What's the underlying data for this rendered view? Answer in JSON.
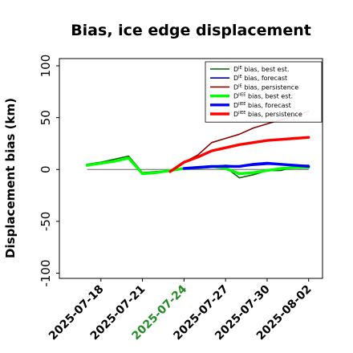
{
  "chart_data": {
    "type": "line",
    "title": "Bias, ice edge displacement",
    "xlabel": "",
    "ylabel": "Displacement bias (km)",
    "ylim": [
      -105,
      107
    ],
    "xlim": [
      "2025-07-15",
      "2025-08-03"
    ],
    "grid": false,
    "legend_position": "top-right",
    "x_ticks": [
      {
        "label": "2025-07-18",
        "color": "#000000"
      },
      {
        "label": "2025-07-21",
        "color": "#000000"
      },
      {
        "label": "2025-07-24",
        "color": "#228b22"
      },
      {
        "label": "2025-07-27",
        "color": "#000000"
      },
      {
        "label": "2025-07-30",
        "color": "#000000"
      },
      {
        "label": "2025-08-02",
        "color": "#000000"
      }
    ],
    "y_ticks": [
      {
        "value": 100,
        "label": "100"
      },
      {
        "value": 50,
        "label": "50"
      },
      {
        "value": 0,
        "label": "0"
      },
      {
        "value": -50,
        "label": "-50"
      },
      {
        "value": -100,
        "label": "-100"
      }
    ],
    "zero_line": true,
    "series": [
      {
        "legend_prefix": "D",
        "legend_sup": "IE",
        "legend_suffix": " bias, best est.",
        "color": "#006400",
        "width": 1.6,
        "x": [
          "2025-07-17",
          "2025-07-18",
          "2025-07-19",
          "2025-07-20",
          "2025-07-21",
          "2025-07-22",
          "2025-07-23",
          "2025-07-24",
          "2025-07-25",
          "2025-07-26",
          "2025-07-27",
          "2025-07-28",
          "2025-07-29",
          "2025-07-30",
          "2025-07-31",
          "2025-08-01",
          "2025-08-02"
        ],
        "y": [
          5,
          7,
          10,
          13,
          -3,
          -2,
          -1,
          1,
          1,
          2,
          2,
          -8,
          -5,
          -1,
          -1,
          3,
          3
        ]
      },
      {
        "legend_prefix": "D",
        "legend_sup": "IE",
        "legend_suffix": " bias, forecast",
        "color": "#00008b",
        "width": 1.6,
        "x": [
          "2025-07-24",
          "2025-07-25",
          "2025-07-26",
          "2025-07-27",
          "2025-07-28",
          "2025-07-29",
          "2025-07-30",
          "2025-07-31",
          "2025-08-01",
          "2025-08-02"
        ],
        "y": [
          1,
          2,
          3,
          4,
          3,
          4,
          5,
          5,
          4,
          4
        ]
      },
      {
        "legend_prefix": "D",
        "legend_sup": "IE",
        "legend_suffix": " bias, persistence",
        "color": "#8b0000",
        "width": 1.6,
        "x": [
          "2025-07-23",
          "2025-07-24",
          "2025-07-25",
          "2025-07-26",
          "2025-07-27",
          "2025-07-28",
          "2025-07-29",
          "2025-07-30",
          "2025-07-31",
          "2025-08-01",
          "2025-08-02"
        ],
        "y": [
          -2,
          7,
          14,
          26,
          30,
          34,
          40,
          44,
          48,
          52,
          56
        ]
      },
      {
        "legend_prefix": "D",
        "legend_sup": "IIEE",
        "legend_suffix": " bias, best est.",
        "color": "#00ff00",
        "width": 3.4,
        "x": [
          "2025-07-17",
          "2025-07-18",
          "2025-07-19",
          "2025-07-20",
          "2025-07-21",
          "2025-07-22",
          "2025-07-23",
          "2025-07-24",
          "2025-07-25",
          "2025-07-26",
          "2025-07-27",
          "2025-07-28",
          "2025-07-29",
          "2025-07-30",
          "2025-07-31",
          "2025-08-01",
          "2025-08-02"
        ],
        "y": [
          4,
          6,
          8,
          11,
          -4,
          -3,
          -1,
          1,
          2,
          3,
          1,
          -4,
          -3,
          -1,
          1,
          2,
          2
        ]
      },
      {
        "legend_prefix": "D",
        "legend_sup": "IIEE",
        "legend_suffix": " bias, forecast",
        "color": "#0000ff",
        "width": 3.4,
        "x": [
          "2025-07-24",
          "2025-07-25",
          "2025-07-26",
          "2025-07-27",
          "2025-07-28",
          "2025-07-29",
          "2025-07-30",
          "2025-07-31",
          "2025-08-01",
          "2025-08-02"
        ],
        "y": [
          1,
          2,
          3,
          3,
          3,
          5,
          6,
          5,
          4,
          3
        ]
      },
      {
        "legend_prefix": "D",
        "legend_sup": "IIEE",
        "legend_suffix": " bias, persistence",
        "color": "#ff0000",
        "width": 3.4,
        "x": [
          "2025-07-23",
          "2025-07-24",
          "2025-07-25",
          "2025-07-26",
          "2025-07-27",
          "2025-07-28",
          "2025-07-29",
          "2025-07-30",
          "2025-07-31",
          "2025-08-01",
          "2025-08-02"
        ],
        "y": [
          -2,
          7,
          12,
          18,
          21,
          24,
          26,
          28,
          29,
          30,
          31
        ]
      }
    ]
  }
}
